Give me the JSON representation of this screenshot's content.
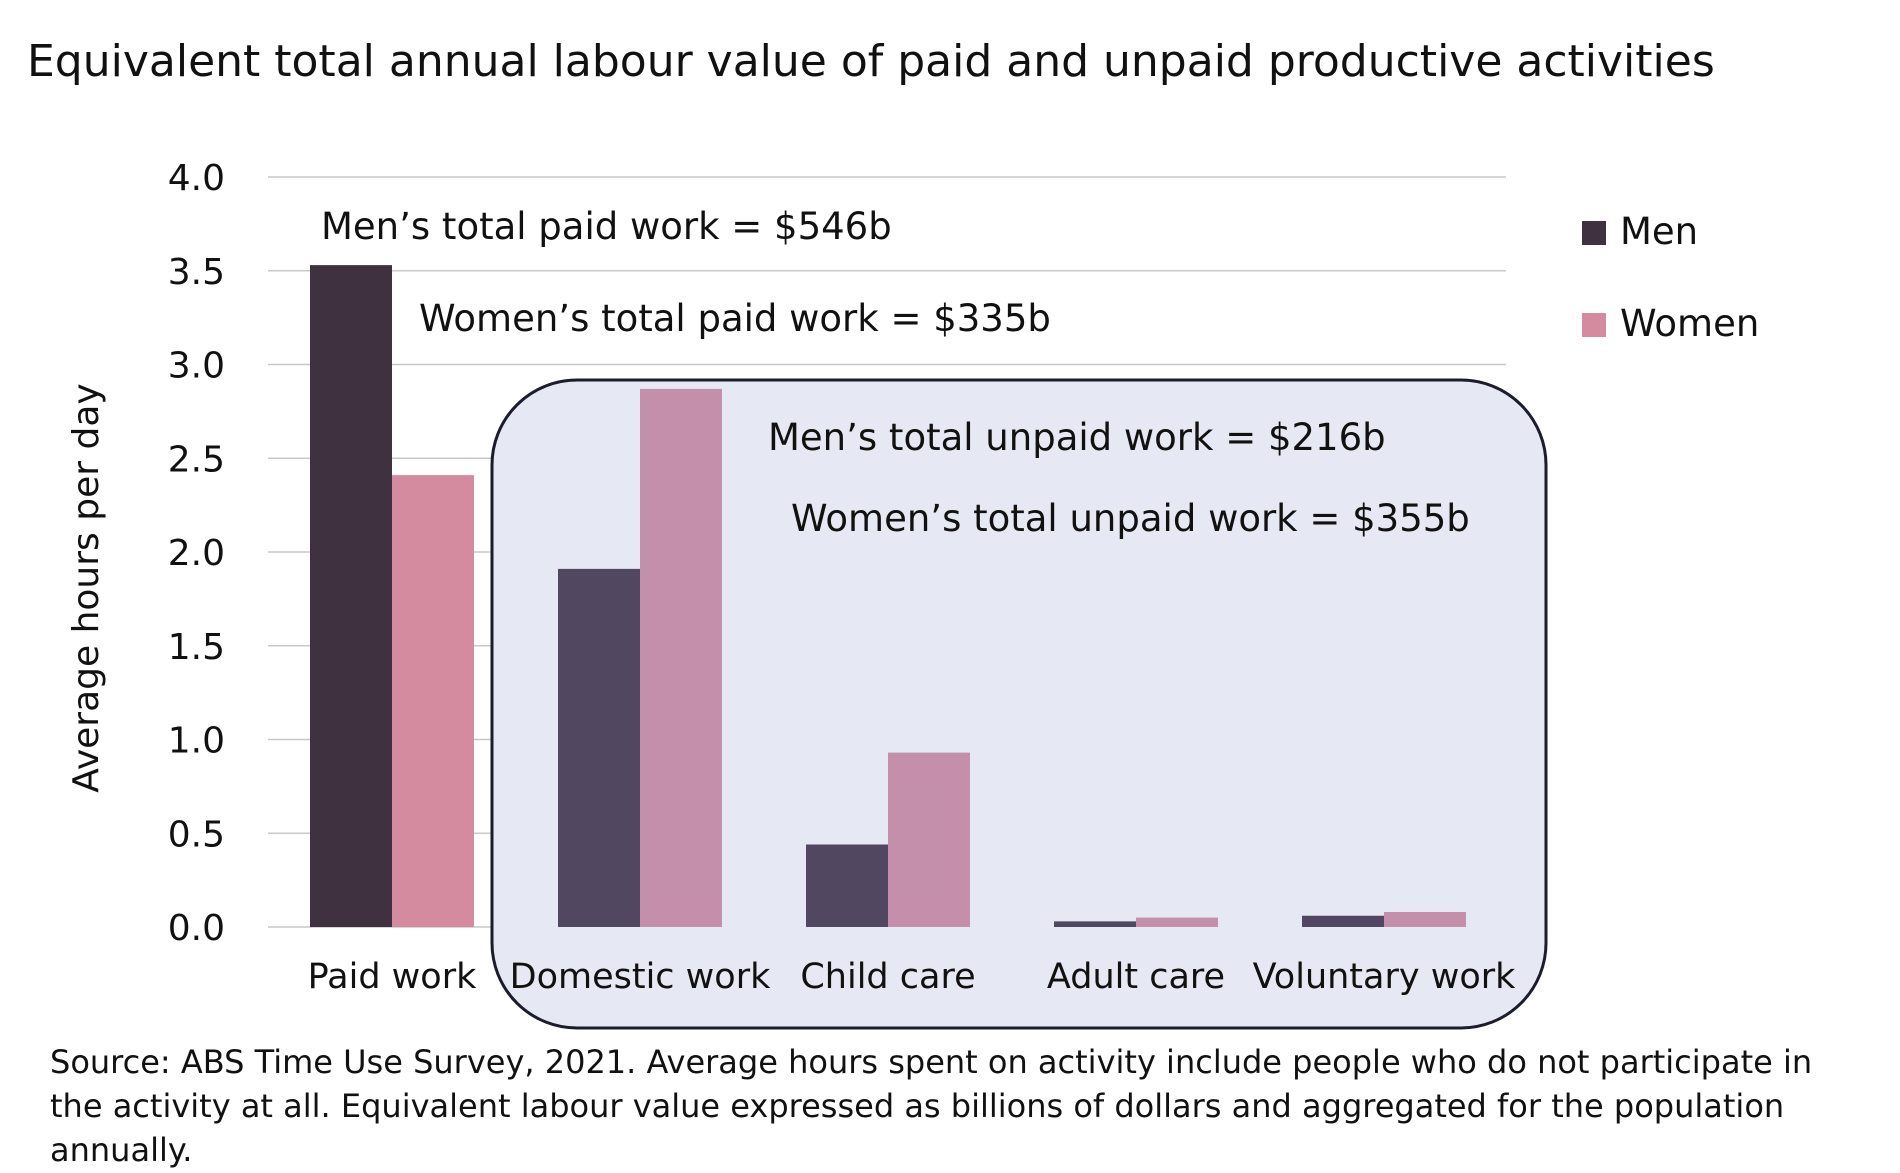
{
  "colors": {
    "men_paid": "#3f3140",
    "women_paid": "#d48a9f",
    "men_unpaid": "#524760",
    "women_unpaid": "#c48fab",
    "unpaid_box_fill": "#e6e8f4",
    "unpaid_box_stroke": "#1c1c2c",
    "grid": "#c8c8c8"
  },
  "chart_data": {
    "type": "bar",
    "title": "Equivalent total annual labour value of paid and unpaid productive activities",
    "xlabel": "",
    "ylabel": "Average hours per day",
    "ylim": [
      0,
      4.0
    ],
    "yticks": [
      "0.0",
      "0.5",
      "1.0",
      "1.5",
      "2.0",
      "2.5",
      "3.0",
      "3.5",
      "4.0"
    ],
    "grid": true,
    "legend_position": "top-right",
    "categories": [
      "Paid work",
      "Domestic work",
      "Child care",
      "Adult care",
      "Voluntary work"
    ],
    "series": [
      {
        "name": "Men",
        "values": [
          3.53,
          1.91,
          0.44,
          0.03,
          0.06
        ]
      },
      {
        "name": "Women",
        "values": [
          2.41,
          2.87,
          0.93,
          0.05,
          0.08
        ]
      }
    ],
    "annotations": [
      {
        "id": "men_paid_total",
        "text": "Men’s total paid work = $546b"
      },
      {
        "id": "women_paid_total",
        "text": "Women’s total paid work = $335b"
      },
      {
        "id": "men_unpaid_total",
        "text": "Men’s total unpaid work = $216b"
      },
      {
        "id": "women_unpaid_total",
        "text": "Women’s total unpaid work = $355b"
      }
    ],
    "highlight_group": {
      "label": "unpaid",
      "categories": [
        "Domestic work",
        "Child care",
        "Adult care",
        "Voluntary work"
      ]
    }
  },
  "source_note": "Source: ABS Time Use Survey, 2021. Average hours spent on activity include people who do not participate in the activity at all. Equivalent labour value expressed as billions of dollars and aggregated for the population annually."
}
